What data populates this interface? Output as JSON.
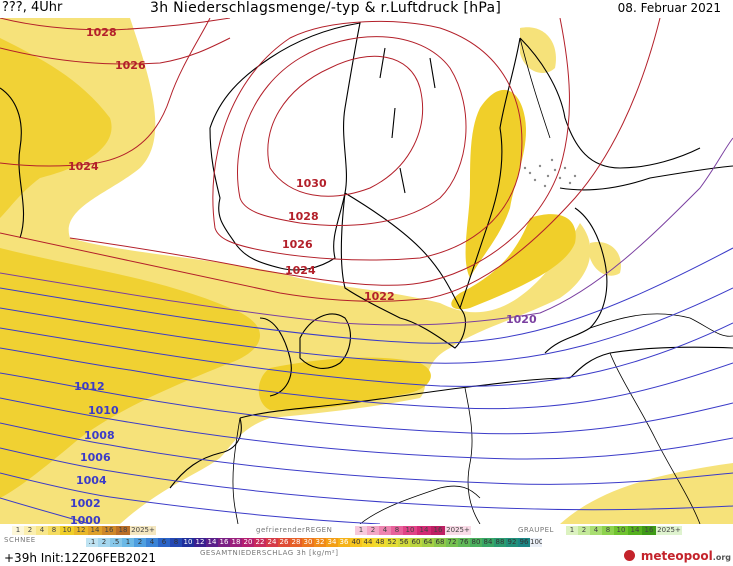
{
  "header": {
    "left": "???, 4Uhr",
    "title": "3h Niederschlagsmenge/-typ & r.Luftdruck [hPa]",
    "date": "08. Februar 2021"
  },
  "map": {
    "isobars_red": [
      "1028",
      "1026",
      "1024",
      "1030",
      "1028",
      "1026",
      "1024",
      "1022"
    ],
    "isobar_purple": "1020",
    "isobars_blue": [
      "1012",
      "1010",
      "1008",
      "1006",
      "1004",
      "1002",
      "1000"
    ],
    "colors": {
      "isobar_high": "#b3202a",
      "isobar_mid": "#7a3fa0",
      "isobar_low": "#3b3bc8",
      "precip_light": "#f6e27a",
      "precip_med": "#f0cf2a",
      "land_line": "#000000",
      "snow_speckle": "#8a8a8a"
    }
  },
  "legend": {
    "schnee_label": "SCHNEE",
    "schnee_values": [
      "1",
      "2",
      "4",
      "8",
      "10",
      "12",
      "14",
      "16",
      "18",
      "2025+"
    ],
    "gefr_label": "gefrierenderREGEN",
    "gefr_values": [
      "1",
      "2",
      "4",
      "8",
      "10",
      "14",
      "16",
      "2025+"
    ],
    "graupel_label": "GRAUPEL",
    "graupel_values": [
      "1",
      "2",
      "4",
      "8",
      "10",
      "14",
      "16",
      "2025+"
    ],
    "regen_values": [
      ".1",
      "2",
      ".5",
      "1",
      "2",
      "4",
      "6",
      "8",
      "10",
      "12",
      "14",
      "16",
      "18",
      "20",
      "22",
      "24",
      "26",
      "28",
      "30",
      "32",
      "34",
      "36",
      "40",
      "44",
      "48",
      "52",
      "56",
      "60",
      "64",
      "68",
      "72",
      "76",
      "80",
      "84",
      "88",
      "92",
      "96",
      "100"
    ],
    "gesamt_label": "GESAMTNIEDERSCHLAG 3h [kg/m²]",
    "init": "+39h Init:12Z06FEB2021",
    "brand": "meteopool",
    "brand_suffix": ".org"
  }
}
